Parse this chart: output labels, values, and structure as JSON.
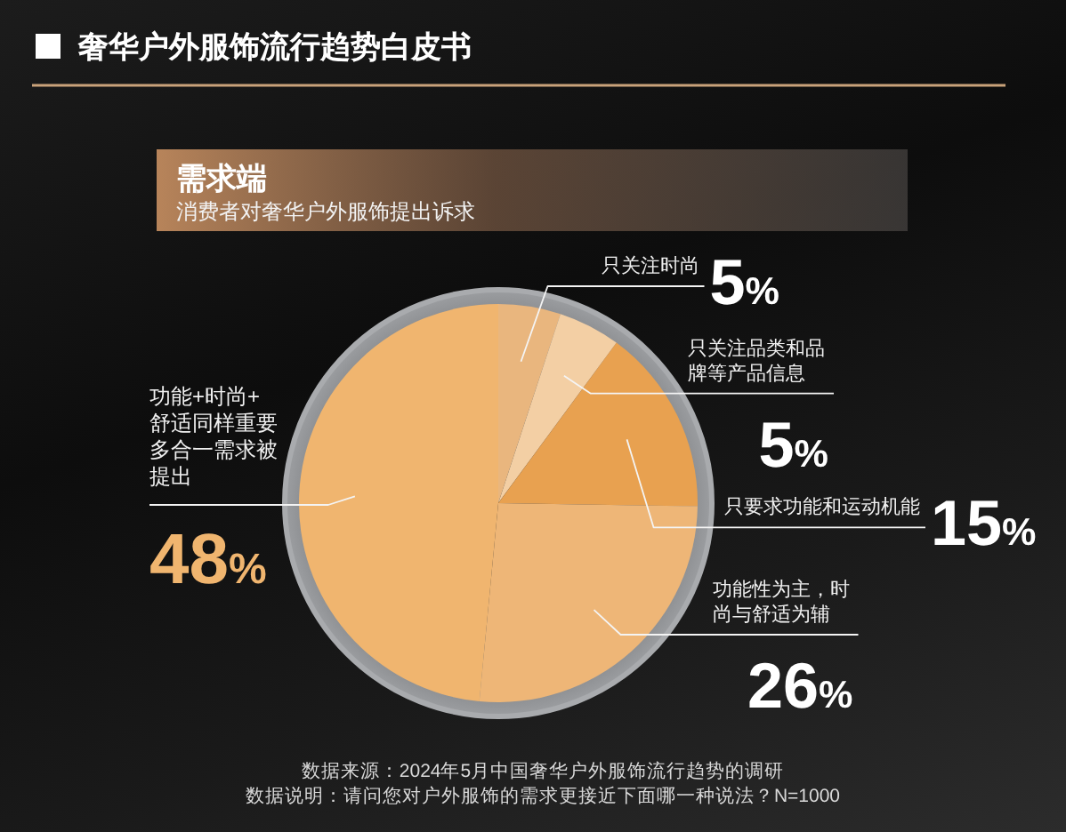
{
  "chart_data": {
    "type": "pie",
    "title": "奢华户外服饰流行趋势白皮书",
    "subtitle": "需求端",
    "categories": [
      "只关注时尚",
      "只关注品类和品牌等产品信息",
      "只要求功能和运动机能",
      "功能性为主，时尚与舒适为辅",
      "功能+时尚+舒适同样重要多合一需求被提出"
    ],
    "values": [
      5,
      5,
      15,
      26,
      48
    ],
    "colors": [
      "#e9b67e",
      "#f3cfa4",
      "#e8a150",
      "#eeb677",
      "#f0b56f"
    ],
    "value_labels": [
      "5%",
      "5%",
      "15%",
      "26%",
      "48%"
    ],
    "annotations": [
      "消费者对奢华户外服饰提出诉求",
      "数据来源：2024年5月中国奢华户外服饰流行趋势的调研",
      "数据说明：请问您对户外服饰的需求更接近下面哪一种说法？N=1000"
    ]
  }
}
